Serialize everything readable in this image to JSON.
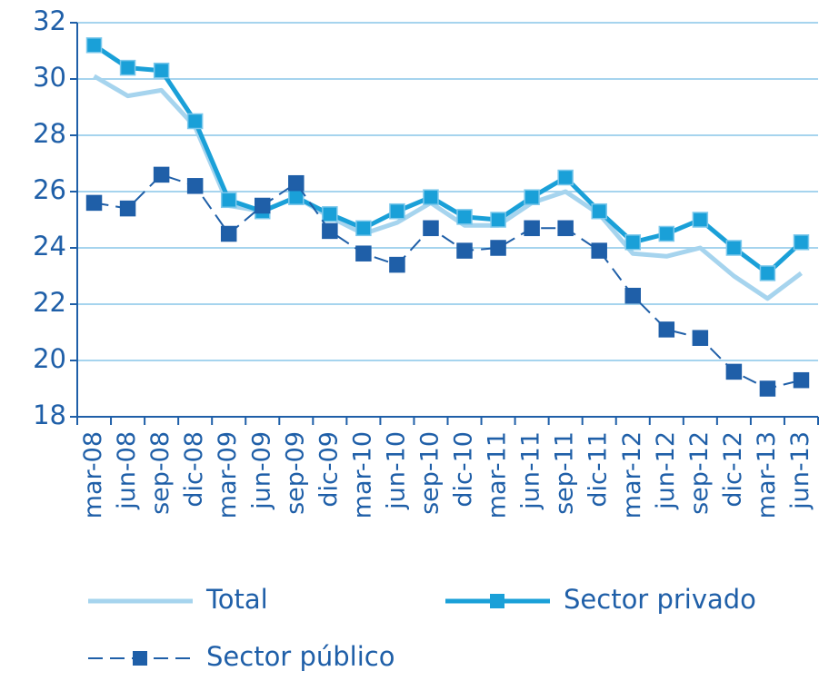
{
  "chart_data": {
    "type": "line",
    "categories": [
      "mar-08",
      "jun-08",
      "sep-08",
      "dic-08",
      "mar-09",
      "jun-09",
      "sep-09",
      "dic-09",
      "mar-10",
      "jun-10",
      "sep-10",
      "dic-10",
      "mar-11",
      "jun-11",
      "sep-11",
      "dic-11",
      "mar-12",
      "jun-12",
      "sep-12",
      "dic-12",
      "mar-13",
      "jun-13"
    ],
    "series": [
      {
        "name": "Total",
        "color": "#a6d4ee",
        "values": [
          30.1,
          29.4,
          29.6,
          28.3,
          25.5,
          25.3,
          25.8,
          25.1,
          24.5,
          24.9,
          25.6,
          24.8,
          24.8,
          25.6,
          26.0,
          25.2,
          23.8,
          23.7,
          24.0,
          23.0,
          22.2,
          23.1
        ]
      },
      {
        "name": "Sector privado",
        "color": "#1aa0d8",
        "values": [
          31.2,
          30.4,
          30.3,
          28.5,
          25.7,
          25.3,
          25.8,
          25.2,
          24.7,
          25.3,
          25.8,
          25.1,
          25.0,
          25.8,
          26.5,
          25.3,
          24.2,
          24.5,
          25.0,
          24.0,
          23.1,
          24.2
        ]
      },
      {
        "name": "Sector público",
        "color": "#1f5fa8",
        "values": [
          25.6,
          25.4,
          26.6,
          26.2,
          24.5,
          25.5,
          26.3,
          24.6,
          23.8,
          23.4,
          24.7,
          23.9,
          24.0,
          24.7,
          24.7,
          23.9,
          22.3,
          21.1,
          20.8,
          19.6,
          19.0,
          19.3
        ]
      }
    ],
    "ylim": [
      18,
      32
    ],
    "yticks": [
      18,
      20,
      22,
      24,
      26,
      28,
      30,
      32
    ],
    "grid": true
  }
}
